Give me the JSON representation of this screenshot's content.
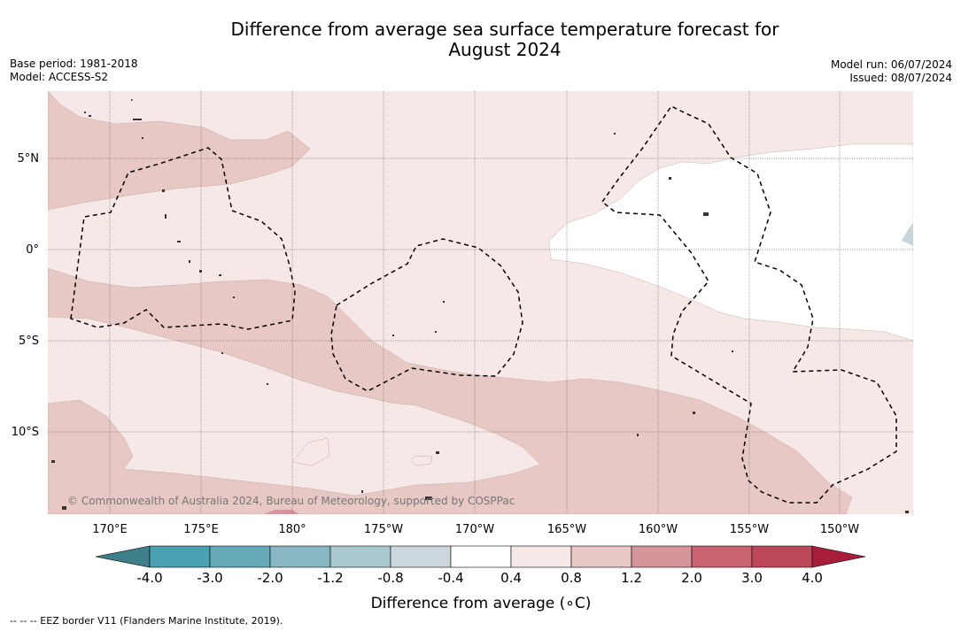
{
  "title": {
    "line1": "Difference from average sea surface temperature forecast for",
    "line2": "August 2024"
  },
  "meta_left": {
    "base_period": "Base period: 1981-2018",
    "model": "Model: ACCESS-S2"
  },
  "meta_right": {
    "model_run": "Model run: 06/07/2024",
    "issued": "Issued: 08/07/2024"
  },
  "map": {
    "copyright": "© Commonwealth of Australia 2024, Bureau of Meteorology, supported by COSPPac",
    "lat_labels": [
      "5°N",
      "0°",
      "5°S",
      "10°S"
    ],
    "lon_labels": [
      "170°E",
      "175°E",
      "180°",
      "175°W",
      "170°W",
      "165°W",
      "160°W",
      "155°W",
      "150°W"
    ],
    "colors": {
      "ocean_warm_light": "#f5e8e6",
      "ocean_warm_mid": "#e7c8c4",
      "ocean_neutral": "#ffffff",
      "ocean_warm_strong": "#d6959a",
      "land": "#444444",
      "ice": "#c8d6dc"
    }
  },
  "colorbar": {
    "title": "Difference from average (∘C)",
    "labels": [
      "-4.0",
      "-3.0",
      "-2.0",
      "-1.2",
      "-0.8",
      "-0.4",
      "0.4",
      "0.8",
      "1.2",
      "2.0",
      "3.0",
      "4.0"
    ],
    "colors": [
      "#4aa1b1",
      "#66a9b8",
      "#88b7c3",
      "#a9c8cf",
      "#cbd7dc",
      "#ffffff",
      "#f5e8e6",
      "#e7c8c4",
      "#d6959a",
      "#c86571",
      "#bc4757"
    ],
    "under_color": "#3f7f89",
    "over_color": "#a81d3a"
  },
  "footer": {
    "eez_text": "--  --  -- EEZ border V11 (Flanders Marine Institute, 2019)."
  }
}
